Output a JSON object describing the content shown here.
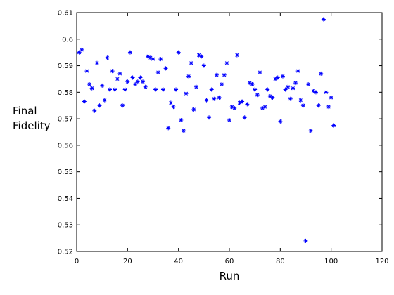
{
  "chart_data": {
    "type": "scatter",
    "x_label": "Run",
    "y_label": "Final Fidelity",
    "xlim": [
      0,
      120
    ],
    "xticks": [
      0,
      20,
      40,
      60,
      80,
      100,
      120
    ],
    "ylim": [
      0.52,
      0.61
    ],
    "yticks": [
      0.52,
      0.53,
      0.54,
      0.55,
      0.56,
      0.57,
      0.58,
      0.59,
      0.6,
      0.61
    ],
    "series": [
      {
        "color": "#0000ff",
        "x": [
          1,
          2,
          3,
          4,
          5,
          6,
          7,
          8,
          9,
          10,
          11,
          12,
          13,
          14,
          15,
          16,
          17,
          18,
          19,
          20,
          21,
          22,
          23,
          24,
          25,
          26,
          27,
          28,
          29,
          30,
          31,
          32,
          33,
          34,
          35,
          36,
          37,
          38,
          39,
          40,
          41,
          42,
          43,
          44,
          45,
          46,
          47,
          48,
          49,
          50,
          51,
          52,
          53,
          54,
          55,
          56,
          57,
          58,
          59,
          60,
          61,
          62,
          63,
          64,
          65,
          66,
          67,
          68,
          69,
          70,
          71,
          72,
          73,
          74,
          75,
          76,
          77,
          78,
          79,
          80,
          81,
          82,
          83,
          84,
          85,
          86,
          87,
          88,
          89,
          90,
          91,
          92,
          93,
          94,
          95,
          96,
          97,
          98,
          99,
          100,
          101
        ],
        "values": [
          0.595,
          0.596,
          0.5765,
          0.588,
          0.583,
          0.5815,
          0.573,
          0.591,
          0.575,
          0.5825,
          0.577,
          0.593,
          0.581,
          0.588,
          0.581,
          0.585,
          0.587,
          0.575,
          0.581,
          0.584,
          0.595,
          0.5855,
          0.583,
          0.584,
          0.5855,
          0.584,
          0.582,
          0.5935,
          0.593,
          0.5925,
          0.581,
          0.5875,
          0.5925,
          0.581,
          0.589,
          0.5665,
          0.576,
          0.5745,
          0.581,
          0.595,
          0.5695,
          0.5655,
          0.5795,
          0.586,
          0.591,
          0.5735,
          0.582,
          0.594,
          0.5935,
          0.59,
          0.577,
          0.5705,
          0.581,
          0.5775,
          0.5865,
          0.578,
          0.583,
          0.5865,
          0.591,
          0.5695,
          0.5745,
          0.574,
          0.594,
          0.576,
          0.5765,
          0.5705,
          0.5755,
          0.5835,
          0.583,
          0.581,
          0.579,
          0.5875,
          0.574,
          0.5745,
          0.581,
          0.5785,
          0.578,
          0.585,
          0.5855,
          0.569,
          0.586,
          0.581,
          0.582,
          0.5775,
          0.5815,
          0.5835,
          0.588,
          0.577,
          0.575,
          0.524,
          0.583,
          0.5655,
          0.5805,
          0.58,
          0.575,
          0.587,
          0.6075,
          0.58,
          0.5745,
          0.578,
          0.5675
        ]
      }
    ]
  }
}
